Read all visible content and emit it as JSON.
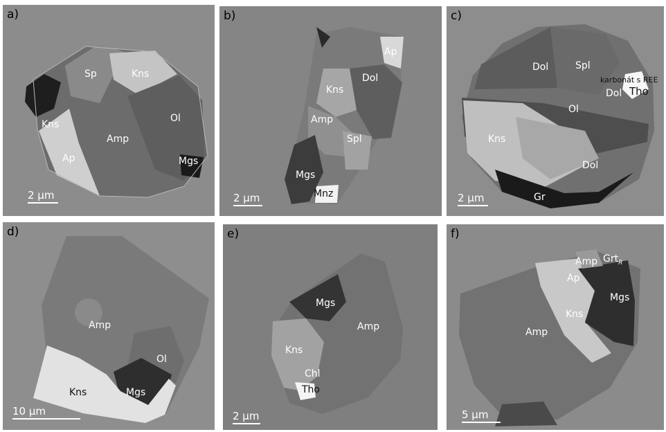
{
  "panels": [
    {
      "id": "a",
      "label": "a)",
      "scale_bar": "2 μm",
      "minerals": [
        "Sp",
        "Kns",
        "Kns",
        "Ol",
        "Amp",
        "Ap",
        "Mgs"
      ]
    },
    {
      "id": "b",
      "label": "b)",
      "scale_bar": "2 μm",
      "minerals": [
        "Ap",
        "Dol",
        "Kns",
        "Amp",
        "Spl",
        "Mgs",
        "Mnz"
      ]
    },
    {
      "id": "c",
      "label": "c)",
      "scale_bar": "2 μm",
      "minerals": [
        "Dol",
        "Spl",
        "karbonát s REE",
        "Tho",
        "Dol",
        "Ol",
        "Kns",
        "Dol",
        "Gr"
      ]
    },
    {
      "id": "d",
      "label": "d)",
      "scale_bar": "10 μm",
      "minerals": [
        "Amp",
        "Ol",
        "Kns",
        "Mgs"
      ]
    },
    {
      "id": "e",
      "label": "e)",
      "scale_bar": "2 μm",
      "minerals": [
        "Mgs",
        "Amp",
        "Kns",
        "Chl",
        "Tho"
      ]
    },
    {
      "id": "f",
      "label": "f)",
      "scale_bar": "5 μm",
      "minerals": [
        "Amp",
        "Grt",
        "Ap",
        "Mgs",
        "Kns",
        "Amp"
      ]
    }
  ],
  "grt_subscript": "R"
}
